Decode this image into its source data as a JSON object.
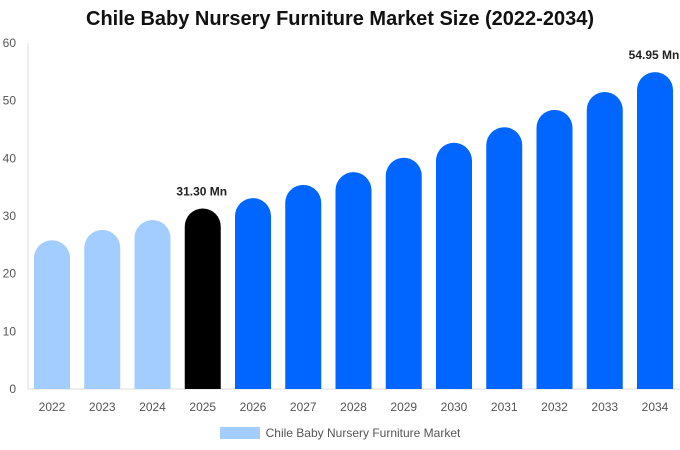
{
  "chart_data": {
    "type": "bar",
    "title": "Chile Baby Nursery Furniture Market Size (2022-2034)",
    "categories": [
      "2022",
      "2023",
      "2024",
      "2025",
      "2026",
      "2027",
      "2028",
      "2029",
      "2030",
      "2031",
      "2032",
      "2033",
      "2034"
    ],
    "series": [
      {
        "name": "Chile Baby Nursery Furniture Market",
        "values": [
          25.8,
          27.6,
          29.3,
          31.3,
          33.1,
          35.4,
          37.6,
          40.1,
          42.7,
          45.4,
          48.4,
          51.5,
          54.95
        ]
      }
    ],
    "data_labels": {
      "2025": "31.30 Mn",
      "2034": "54.95 Mn"
    },
    "ylim": [
      0,
      60
    ],
    "yticks": [
      0,
      10,
      20,
      30,
      40,
      50,
      60
    ],
    "xlabel": "",
    "ylabel": "",
    "grid": false,
    "legend_position": "bottom",
    "colors": {
      "historical": "#a3cdff",
      "current": "#000000",
      "forecast": "#0066ff"
    }
  }
}
